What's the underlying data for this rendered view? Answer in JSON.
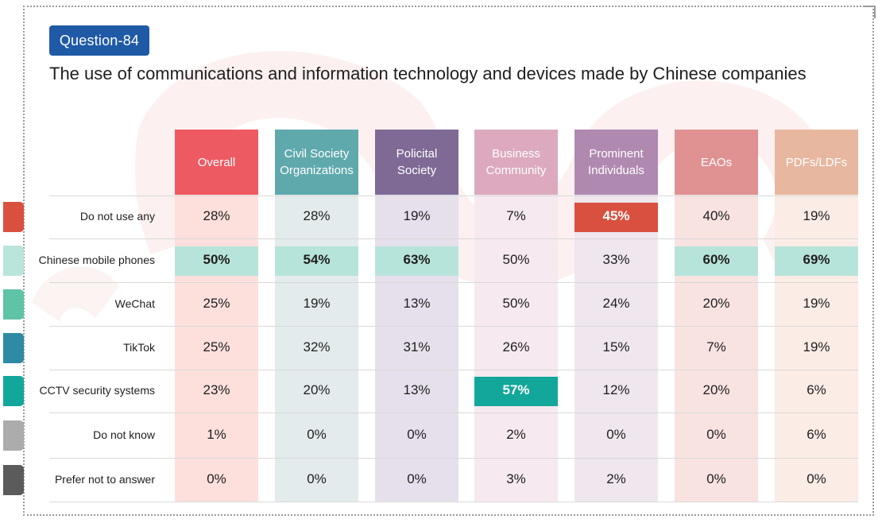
{
  "badge": "Question-84",
  "title": "The use of communications and information technology and devices made by Chinese companies",
  "colors": {
    "swatches": [
      "#d9503f",
      "#b9e5dc",
      "#5fc3a7",
      "#2f8aa3",
      "#12a79a",
      "#acacac",
      "#5b5b5b"
    ],
    "highlight_red": "#d9503f",
    "highlight_mint": "#b7e4da",
    "highlight_teal": "#12a79a"
  },
  "chart_data": {
    "type": "table",
    "title": "The use of communications and information technology and devices made by Chinese companies",
    "groups": [
      {
        "name": "Overall",
        "header_color": "#ee5a62",
        "body_color": "#fde0dc"
      },
      {
        "name": "Civil Society Organizations",
        "header_color": "#5fa9ad",
        "body_color": "#e3ebec"
      },
      {
        "name": "Policital Society",
        "header_color": "#7e6a95",
        "body_color": "#e6e0ec"
      },
      {
        "name": "Business Community",
        "header_color": "#dca9be",
        "body_color": "#f6e9ef"
      },
      {
        "name": "Prominent Individuals",
        "header_color": "#b089b0",
        "body_color": "#efe6ee"
      },
      {
        "name": "EAOs",
        "header_color": "#e09292",
        "body_color": "#f8e3e1"
      },
      {
        "name": "PDFs/LDFs",
        "header_color": "#e8b7a0",
        "body_color": "#fbece6"
      }
    ],
    "rows": [
      {
        "label": "Do not use any",
        "values": [
          "28%",
          "28%",
          "19%",
          "7%",
          "45%",
          "40%",
          "19%"
        ]
      },
      {
        "label": "Chinese mobile phones",
        "values": [
          "50%",
          "54%",
          "63%",
          "50%",
          "33%",
          "60%",
          "69%"
        ]
      },
      {
        "label": "WeChat",
        "values": [
          "25%",
          "19%",
          "13%",
          "50%",
          "24%",
          "20%",
          "19%"
        ]
      },
      {
        "label": "TikTok",
        "values": [
          "25%",
          "32%",
          "31%",
          "26%",
          "15%",
          "7%",
          "19%"
        ]
      },
      {
        "label": "CCTV security systems",
        "values": [
          "23%",
          "20%",
          "13%",
          "57%",
          "12%",
          "20%",
          "6%"
        ]
      },
      {
        "label": "Do not know",
        "values": [
          "1%",
          "0%",
          "0%",
          "2%",
          "0%",
          "0%",
          "6%"
        ]
      },
      {
        "label": "Prefer not to answer",
        "values": [
          "0%",
          "0%",
          "0%",
          "3%",
          "2%",
          "0%",
          "0%"
        ]
      }
    ],
    "highlights": [
      {
        "row": 0,
        "col": 4,
        "style": "red"
      },
      {
        "row": 1,
        "col": 0,
        "style": "mint"
      },
      {
        "row": 1,
        "col": 1,
        "style": "mint"
      },
      {
        "row": 1,
        "col": 2,
        "style": "mint"
      },
      {
        "row": 1,
        "col": 5,
        "style": "mint"
      },
      {
        "row": 1,
        "col": 6,
        "style": "mint"
      },
      {
        "row": 4,
        "col": 3,
        "style": "teal"
      }
    ]
  }
}
